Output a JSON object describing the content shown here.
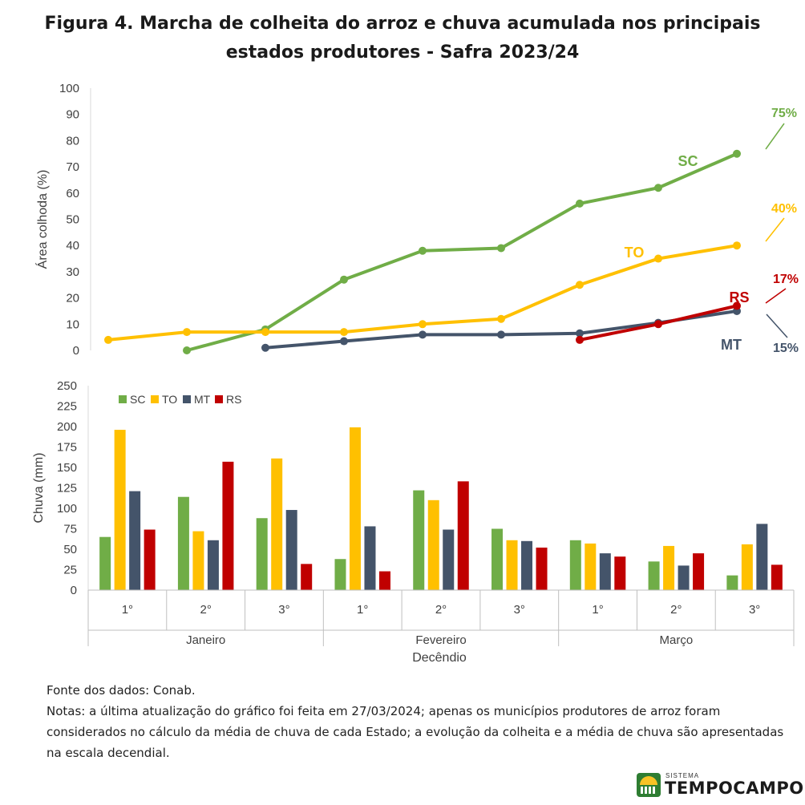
{
  "title_lines": [
    "Figura 4. Marcha de colheita do arroz e chuva acumulada nos principais",
    "estados produtores - Safra 2023/24"
  ],
  "chart_data": [
    {
      "type": "line",
      "ylabel": "Área colhoda  (%)",
      "ylim": [
        0,
        100
      ],
      "yticks": [
        0,
        10,
        20,
        30,
        40,
        50,
        60,
        70,
        80,
        90,
        100
      ],
      "x_index": [
        0,
        1,
        2,
        3,
        4,
        5,
        6,
        7,
        8
      ],
      "series": [
        {
          "name": "SC",
          "color": "#70ad47",
          "values": [
            null,
            0,
            8,
            27,
            38,
            39,
            56,
            62,
            75
          ],
          "end_label": "75%"
        },
        {
          "name": "TO",
          "color": "#ffc000",
          "values": [
            4,
            7,
            7,
            7,
            10,
            12,
            25,
            35,
            40
          ],
          "end_label": "40%"
        },
        {
          "name": "MT",
          "color": "#44546a",
          "values": [
            null,
            null,
            1,
            3.5,
            6,
            6,
            6.5,
            10.5,
            15
          ],
          "end_label": "15%"
        },
        {
          "name": "RS",
          "color": "#c00000",
          "values": [
            null,
            null,
            null,
            null,
            null,
            null,
            4,
            10,
            17
          ],
          "end_label": "17%"
        }
      ]
    },
    {
      "type": "bar",
      "ylabel": "Chuva (mm)",
      "xlabel": "Decêndio",
      "ylim": [
        0,
        250
      ],
      "yticks": [
        0,
        25,
        50,
        75,
        100,
        125,
        150,
        175,
        200,
        225,
        250
      ],
      "categories": [
        "1°",
        "2°",
        "3°",
        "1°",
        "2°",
        "3°",
        "1°",
        "2°",
        "3°"
      ],
      "groups": [
        "Janeiro",
        "Fevereiro",
        "Março"
      ],
      "legend_position": "top-left",
      "series": [
        {
          "name": "SC",
          "color": "#70ad47",
          "values": [
            65,
            114,
            88,
            38,
            122,
            75,
            61,
            35,
            18
          ]
        },
        {
          "name": "TO",
          "color": "#ffc000",
          "values": [
            196,
            72,
            161,
            199,
            110,
            61,
            57,
            54,
            56
          ]
        },
        {
          "name": "MT",
          "color": "#44546a",
          "values": [
            121,
            61,
            98,
            78,
            74,
            60,
            45,
            30,
            81
          ]
        },
        {
          "name": "RS",
          "color": "#c00000",
          "values": [
            74,
            157,
            32,
            23,
            133,
            52,
            41,
            45,
            31
          ]
        }
      ]
    }
  ],
  "notes": {
    "source": "Fonte dos dados: Conab.",
    "text": "Notas: a última atualização do gráfico foi feita em 27/03/2024; apenas os municípios produtores de arroz foram considerados no cálculo da média de chuva de cada Estado; a evolução da colheita e a média de chuva são apresentadas na escala decendial."
  },
  "logo": {
    "small": "SISTEMA",
    "big": "TEMPOCAMPO"
  }
}
